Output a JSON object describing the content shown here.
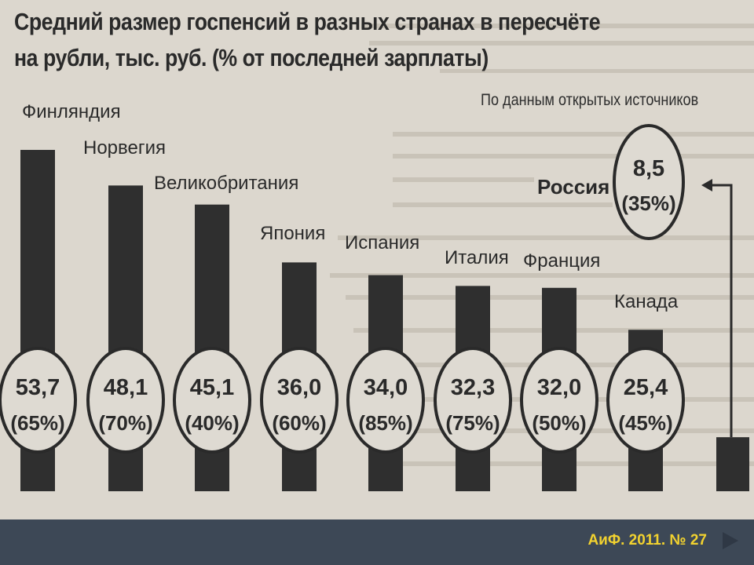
{
  "title_line1": "Средний размер госпенсий в разных странах в пересчёте",
  "title_line2": "на рубли, тыс. руб. (% от последней зарплаты)",
  "source": "По данным открытых источников",
  "footer": "АиФ. 2011. № 27",
  "colors": {
    "bar": "#2f2f2f",
    "paper": "#dcd7ce",
    "footer": "#3d4856",
    "footer_text": "#f2d22f"
  },
  "chart_data": {
    "type": "bar",
    "title": "Средний размер госпенсий в разных странах в пересчёте на рубли, тыс. руб. (% от последней зарплаты)",
    "categories": [
      "Финляндия",
      "Норвегия",
      "Великобритания",
      "Япония",
      "Испания",
      "Италия",
      "Франция",
      "Канада",
      "Россия"
    ],
    "values": [
      53.7,
      48.1,
      45.1,
      36.0,
      34.0,
      32.3,
      32.0,
      25.4,
      8.5
    ],
    "value_labels": [
      "53,7",
      "48,1",
      "45,1",
      "36,0",
      "34,0",
      "32,3",
      "32,0",
      "25,4",
      "8,5"
    ],
    "percent_labels": [
      "(65%)",
      "(70%)",
      "(40%)",
      "(60%)",
      "(85%)",
      "(75%)",
      "(50%)",
      "(45%)",
      "(35%)"
    ],
    "percent_of_last_salary": [
      65,
      70,
      40,
      60,
      85,
      75,
      50,
      45,
      35
    ],
    "highlight": "Россия",
    "ylim": [
      0,
      60
    ],
    "grid": false,
    "legend": "none"
  }
}
